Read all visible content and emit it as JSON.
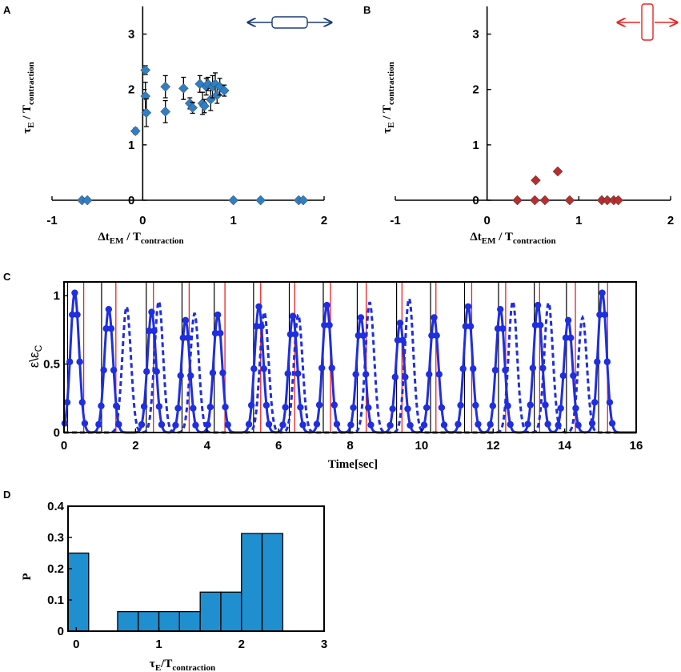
{
  "colors": {
    "blue_marker": "#2f7fc4",
    "red_marker": "#b82d2d",
    "blue_line": "#1f2ee0",
    "red_line": "#e22",
    "bar": "#1f8fd0",
    "arrow_blue": "#1d3b7a",
    "arrow_red": "#e22"
  },
  "chart_data": [
    {
      "panel": "A",
      "type": "scatter",
      "xlabel_prefix": "Δt",
      "xlabel_sub": "EM",
      "xlabel_mid": " / T",
      "xlabel_sub2": "contraction",
      "ylabel_prefix": "τ",
      "ylabel_sub": "E",
      "ylabel_mid": " / T",
      "ylabel_sub2": "contraction",
      "xlim": [
        -1,
        2
      ],
      "ylim": [
        0,
        3.5
      ],
      "xticks": [
        -1,
        0,
        1,
        2
      ],
      "xtick_labels": [
        "-1",
        "0",
        "1",
        "2"
      ],
      "yticks": [
        0,
        1,
        2,
        3
      ],
      "ytick_labels": [
        "0",
        "1",
        "2",
        "3"
      ],
      "legend_icon": "horizontal-stretch-icon",
      "points": [
        {
          "x": -0.67,
          "y": 0
        },
        {
          "x": -0.61,
          "y": 0
        },
        {
          "x": 1.0,
          "y": 0
        },
        {
          "x": 1.3,
          "y": 0
        },
        {
          "x": 1.72,
          "y": 0
        },
        {
          "x": 1.77,
          "y": 0
        },
        {
          "x": -0.08,
          "y": 1.25,
          "err": 0.05
        },
        {
          "x": 0.03,
          "y": 2.35,
          "err": 0.08
        },
        {
          "x": 0.03,
          "y": 1.88,
          "err": 0.25
        },
        {
          "x": 0.04,
          "y": 1.58,
          "err": 0.25
        },
        {
          "x": 0.25,
          "y": 2.05,
          "err": 0.2
        },
        {
          "x": 0.25,
          "y": 1.6,
          "err": 0.2
        },
        {
          "x": 0.45,
          "y": 2.02,
          "err": 0.2
        },
        {
          "x": 0.52,
          "y": 1.75,
          "err": 0.1
        },
        {
          "x": 0.55,
          "y": 1.67,
          "err": 0.1
        },
        {
          "x": 0.63,
          "y": 2.1,
          "err": 0.15
        },
        {
          "x": 0.66,
          "y": 1.75,
          "err": 0.2
        },
        {
          "x": 0.68,
          "y": 1.7,
          "err": 0.12
        },
        {
          "x": 0.7,
          "y": 2.05,
          "err": 0.15
        },
        {
          "x": 0.72,
          "y": 2.1,
          "err": 0.12
        },
        {
          "x": 0.75,
          "y": 1.82,
          "err": 0.2
        },
        {
          "x": 0.77,
          "y": 2.05,
          "err": 0.2
        },
        {
          "x": 0.8,
          "y": 2.1,
          "err": 0.2
        },
        {
          "x": 0.82,
          "y": 1.9,
          "err": 0.15
        },
        {
          "x": 0.85,
          "y": 2.05,
          "err": 0.15
        },
        {
          "x": 0.9,
          "y": 1.98,
          "err": 0.1
        }
      ]
    },
    {
      "panel": "B",
      "type": "scatter",
      "xlabel_prefix": "Δt",
      "xlabel_sub": "EM",
      "xlabel_mid": " / T",
      "xlabel_sub2": "contraction",
      "ylabel_prefix": "τ",
      "ylabel_sub": "E",
      "ylabel_mid": " / T",
      "ylabel_sub2": "contraction",
      "xlim": [
        -1,
        2
      ],
      "ylim": [
        0,
        3.5
      ],
      "xticks": [
        -1,
        0,
        1,
        2
      ],
      "xtick_labels": [
        "-1",
        "0",
        "1",
        "2"
      ],
      "yticks": [
        0,
        1,
        2,
        3
      ],
      "ytick_labels": [
        "0",
        "1",
        "2",
        "3"
      ],
      "legend_icon": "vertical-stretch-icon",
      "points": [
        {
          "x": 0.33,
          "y": 0
        },
        {
          "x": 0.52,
          "y": 0
        },
        {
          "x": 0.63,
          "y": 0
        },
        {
          "x": 0.9,
          "y": 0
        },
        {
          "x": 1.25,
          "y": 0
        },
        {
          "x": 1.31,
          "y": 0
        },
        {
          "x": 1.38,
          "y": 0
        },
        {
          "x": 1.43,
          "y": 0
        },
        {
          "x": 0.53,
          "y": 0.36
        },
        {
          "x": 0.77,
          "y": 0.52
        }
      ]
    },
    {
      "panel": "C",
      "type": "line",
      "xlabel": "Time[sec]",
      "ylabel": "ε\\ε",
      "ylabel_sub": "C",
      "xlim": [
        0,
        16
      ],
      "ylim": [
        0,
        1.1
      ],
      "xticks": [
        0,
        2,
        4,
        6,
        8,
        10,
        12,
        14,
        16
      ],
      "xtick_labels": [
        "0",
        "2",
        "4",
        "6",
        "8",
        "10",
        "12",
        "14",
        "16"
      ],
      "yticks": [
        0,
        0.5,
        1
      ],
      "ytick_labels": [
        "0",
        "0.5",
        "1"
      ],
      "series": [
        {
          "name": "solid-dotted",
          "style": "solid",
          "peaks": [
            {
              "t": 0.3,
              "a": 1.02
            },
            {
              "t": 1.25,
              "a": 0.9
            },
            {
              "t": 2.45,
              "a": 0.88
            },
            {
              "t": 3.4,
              "a": 0.82
            },
            {
              "t": 4.3,
              "a": 0.86
            },
            {
              "t": 5.45,
              "a": 0.92
            },
            {
              "t": 6.4,
              "a": 0.85
            },
            {
              "t": 7.35,
              "a": 0.93
            },
            {
              "t": 8.3,
              "a": 0.84
            },
            {
              "t": 9.4,
              "a": 0.8
            },
            {
              "t": 10.35,
              "a": 0.84
            },
            {
              "t": 11.3,
              "a": 0.92
            },
            {
              "t": 12.2,
              "a": 0.9
            },
            {
              "t": 13.25,
              "a": 0.93
            },
            {
              "t": 14.1,
              "a": 0.82
            },
            {
              "t": 15.05,
              "a": 1.02
            }
          ]
        },
        {
          "name": "dashed",
          "style": "dashed",
          "peaks": [
            {
              "t": 1.75,
              "a": 0.92
            },
            {
              "t": 2.65,
              "a": 0.96
            },
            {
              "t": 3.65,
              "a": 0.87
            },
            {
              "t": 5.6,
              "a": 0.88
            },
            {
              "t": 6.55,
              "a": 0.86
            },
            {
              "t": 8.55,
              "a": 0.95
            },
            {
              "t": 9.65,
              "a": 0.98
            },
            {
              "t": 12.55,
              "a": 0.96
            },
            {
              "t": 13.55,
              "a": 0.95
            },
            {
              "t": 14.5,
              "a": 0.84
            }
          ]
        }
      ],
      "black_lines": [
        0.1,
        1.05,
        2.3,
        3.3,
        4.2,
        5.3,
        6.3,
        7.25,
        8.2,
        9.3,
        10.25,
        11.2,
        12.15,
        13.15,
        14.05,
        14.95
      ],
      "red_lines": [
        0.55,
        1.45,
        2.5,
        3.5,
        4.5,
        5.5,
        6.45,
        7.45,
        8.45,
        9.45,
        10.4,
        11.4,
        12.35,
        13.3,
        14.3,
        15.2
      ]
    },
    {
      "panel": "D",
      "type": "bar",
      "xlabel_prefix": "τ",
      "xlabel_sub": "E",
      "xlabel_mid": "/T",
      "xlabel_sub2": "contraction",
      "ylabel": "P",
      "xlim": [
        -0.1,
        3.0
      ],
      "ylim": [
        0,
        0.4
      ],
      "xticks": [
        0,
        1,
        2,
        3
      ],
      "xtick_labels": [
        "0",
        "1",
        "2",
        "3"
      ],
      "yticks": [
        0,
        0.1,
        0.2,
        0.3,
        0.4
      ],
      "ytick_labels": [
        "0",
        "0.1",
        "0.2",
        "0.3",
        "0.4"
      ],
      "bin_width": 0.25,
      "bin_starts": [
        -0.1,
        0.5,
        0.75,
        1.0,
        1.25,
        1.5,
        1.75,
        2.0,
        2.25
      ],
      "values": [
        0.25,
        0.0625,
        0.0625,
        0.0625,
        0.0625,
        0.125,
        0.125,
        0.3125,
        0.3125
      ]
    }
  ],
  "panels": {
    "A": "A",
    "B": "B",
    "C": "C",
    "D": "D"
  }
}
